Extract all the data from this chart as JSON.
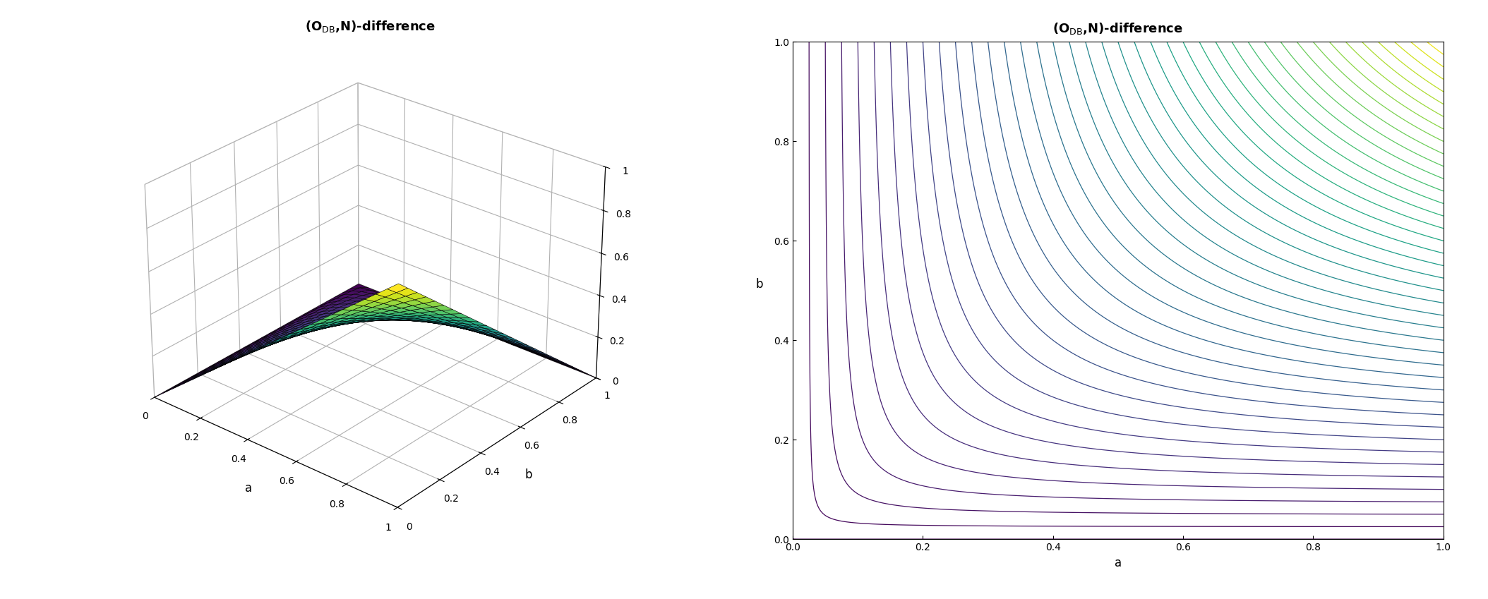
{
  "title_3d": "(O$_\\mathrm{DB}$,N)-difference",
  "title_contour": "(O$_\\mathrm{DB}$,N)-difference",
  "xlabel_3d": "a",
  "ylabel_3d": "b",
  "xlabel_contour": "a",
  "ylabel_contour": "b",
  "n_grid": 25,
  "n_contour_lines": 41,
  "colormap": "viridis",
  "background_color": "#ffffff",
  "title_fontsize": 13,
  "axis_label_fontsize": 12,
  "tick_fontsize": 10,
  "elev": 28,
  "azim": -50,
  "zlim": [
    0,
    1
  ],
  "xticks": [
    0,
    0.2,
    0.4,
    0.6,
    0.8,
    1.0
  ],
  "yticks": [
    0,
    0.2,
    0.4,
    0.6,
    0.8,
    1.0
  ],
  "zticks": [
    0,
    0.2,
    0.4,
    0.6,
    0.8,
    1.0
  ]
}
